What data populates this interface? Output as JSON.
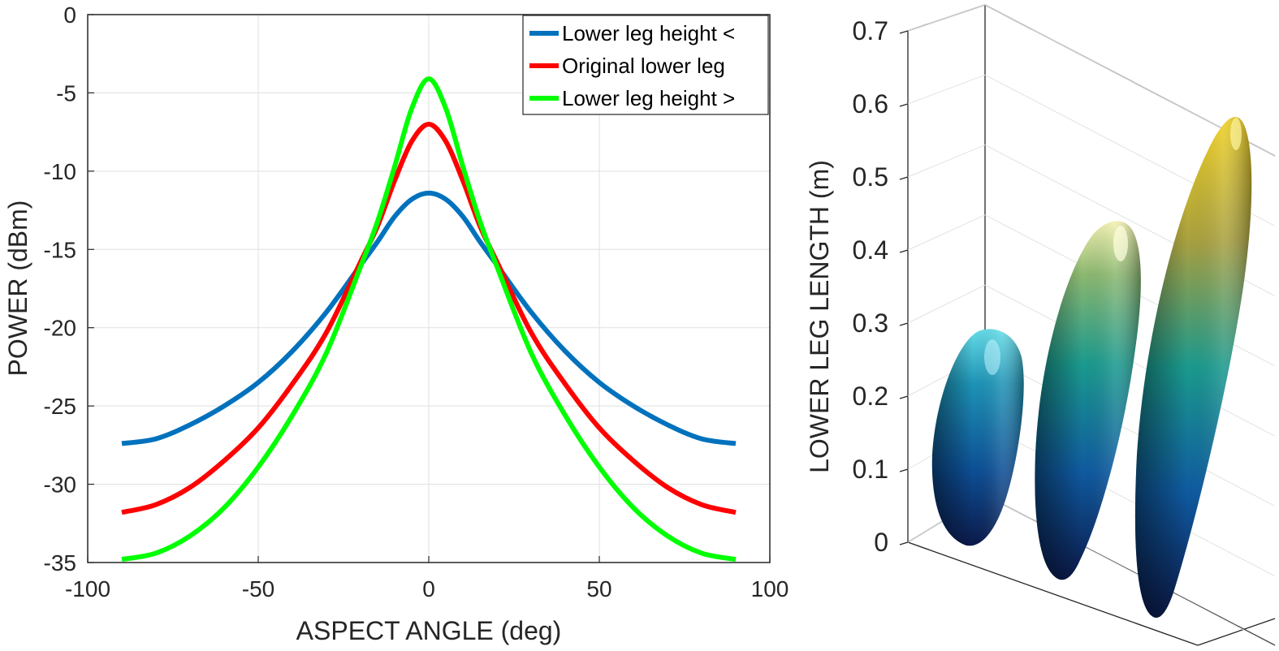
{
  "chart_data": [
    {
      "type": "line",
      "xlabel": "ASPECT ANGLE (deg)",
      "ylabel": "POWER (dBm)",
      "xlim": [
        -100,
        100
      ],
      "ylim": [
        -35,
        0
      ],
      "grid": true,
      "legend_location": "top-right",
      "x_ticks": [
        -100,
        -50,
        0,
        50,
        100
      ],
      "y_ticks": [
        0,
        -5,
        -10,
        -15,
        -20,
        -25,
        -30,
        -35
      ],
      "x_range": [
        -90,
        90
      ],
      "series": [
        {
          "name": "Lower leg height <",
          "color": "#0072BD",
          "x": [
            -90,
            -80,
            -70,
            -60,
            -50,
            -40,
            -30,
            -20,
            -15,
            -10,
            -5,
            0,
            5,
            10,
            15,
            20,
            30,
            40,
            50,
            60,
            70,
            80,
            90
          ],
          "y": [
            -27.4,
            -27.1,
            -26.2,
            -25.0,
            -23.5,
            -21.5,
            -19.0,
            -16.0,
            -14.5,
            -12.9,
            -11.8,
            -11.4,
            -11.8,
            -12.9,
            -14.5,
            -16.0,
            -19.0,
            -21.5,
            -23.5,
            -25.0,
            -26.2,
            -27.1,
            -27.4
          ]
        },
        {
          "name": "Original lower leg",
          "color": "#FF0000",
          "x": [
            -90,
            -80,
            -70,
            -60,
            -50,
            -40,
            -30,
            -20,
            -15,
            -10,
            -5,
            0,
            5,
            10,
            15,
            20,
            30,
            40,
            50,
            60,
            70,
            80,
            90
          ],
          "y": [
            -31.8,
            -31.3,
            -30.2,
            -28.5,
            -26.4,
            -23.6,
            -20.3,
            -15.8,
            -13.5,
            -10.6,
            -8.1,
            -7.0,
            -8.1,
            -10.6,
            -13.5,
            -15.8,
            -20.3,
            -23.6,
            -26.4,
            -28.5,
            -30.2,
            -31.3,
            -31.8
          ]
        },
        {
          "name": "Lower leg height >",
          "color": "#00FF00",
          "x": [
            -90,
            -80,
            -70,
            -60,
            -50,
            -40,
            -30,
            -20,
            -15,
            -10,
            -5,
            0,
            5,
            10,
            15,
            20,
            30,
            40,
            50,
            60,
            70,
            80,
            90
          ],
          "y": [
            -34.8,
            -34.4,
            -33.3,
            -31.5,
            -28.9,
            -25.6,
            -21.6,
            -16.1,
            -13.2,
            -9.7,
            -6.0,
            -4.1,
            -6.0,
            -9.7,
            -13.2,
            -16.1,
            -21.6,
            -25.6,
            -28.9,
            -31.5,
            -33.3,
            -34.4,
            -34.8
          ]
        }
      ]
    },
    {
      "type": "3d-surface",
      "zlabel": "LOWER LEG LENGTH (m)",
      "zlim": [
        0,
        0.7
      ],
      "z_ticks": [
        0,
        0.1,
        0.2,
        0.3,
        0.4,
        0.5,
        0.6,
        0.7
      ],
      "grid": true,
      "colormap": "parula",
      "objects": [
        {
          "name": "short-ellipsoid",
          "length_m": 0.29
        },
        {
          "name": "medium-ellipsoid",
          "length_m": 0.44
        },
        {
          "name": "long-ellipsoid",
          "length_m": 0.58
        }
      ]
    }
  ]
}
